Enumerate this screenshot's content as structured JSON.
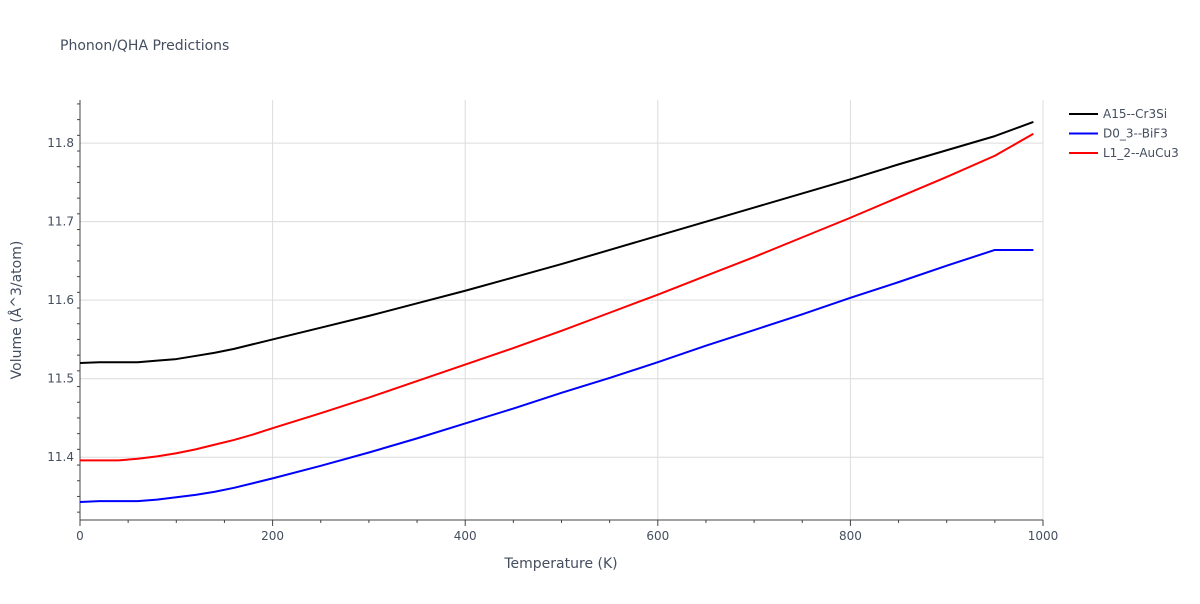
{
  "chart_data": {
    "type": "line",
    "title": "Phonon/QHA Predictions",
    "xlabel": "Temperature (K)",
    "ylabel": "Volume (Å^3/atom)",
    "xlim": [
      0,
      1000
    ],
    "ylim": [
      11.32,
      11.855
    ],
    "xticks": [
      0,
      200,
      400,
      600,
      800,
      1000
    ],
    "yticks": [
      11.4,
      11.5,
      11.6,
      11.7,
      11.8
    ],
    "grid": true,
    "legend_position": "top-right",
    "series": [
      {
        "name": "A15--Cr3Si",
        "color": "#000000",
        "x": [
          0,
          20,
          40,
          60,
          80,
          100,
          120,
          140,
          160,
          180,
          200,
          250,
          300,
          350,
          400,
          450,
          500,
          550,
          600,
          650,
          700,
          750,
          800,
          850,
          900,
          950,
          990
        ],
        "y": [
          11.52,
          11.521,
          11.521,
          11.521,
          11.523,
          11.525,
          11.529,
          11.533,
          11.538,
          11.544,
          11.55,
          11.565,
          11.58,
          11.596,
          11.612,
          11.629,
          11.646,
          11.664,
          11.682,
          11.7,
          11.718,
          11.736,
          11.754,
          11.773,
          11.791,
          11.809,
          11.827
        ]
      },
      {
        "name": "D0_3--BiF3",
        "color": "#0000ff",
        "x": [
          0,
          20,
          40,
          60,
          80,
          100,
          120,
          140,
          160,
          180,
          200,
          250,
          300,
          350,
          400,
          450,
          500,
          550,
          600,
          650,
          700,
          750,
          800,
          850,
          900,
          950,
          990
        ],
        "y": [
          11.343,
          11.344,
          11.344,
          11.344,
          11.346,
          11.349,
          11.352,
          11.356,
          11.361,
          11.367,
          11.373,
          11.389,
          11.406,
          11.424,
          11.443,
          11.462,
          11.482,
          11.501,
          11.521,
          11.542,
          11.562,
          11.582,
          11.603,
          11.623,
          11.644,
          11.664,
          11.664
        ]
      },
      {
        "name": "L1_2--AuCu3",
        "color": "#ff0000",
        "x": [
          0,
          20,
          40,
          60,
          80,
          100,
          120,
          140,
          160,
          180,
          200,
          250,
          300,
          350,
          400,
          450,
          500,
          550,
          600,
          650,
          700,
          750,
          800,
          850,
          900,
          950,
          990
        ],
        "y": [
          11.396,
          11.396,
          11.396,
          11.398,
          11.401,
          11.405,
          11.41,
          11.416,
          11.422,
          11.429,
          11.437,
          11.456,
          11.476,
          11.497,
          11.518,
          11.539,
          11.561,
          11.584,
          11.607,
          11.631,
          11.655,
          11.68,
          11.705,
          11.731,
          11.757,
          11.784,
          11.812
        ]
      }
    ]
  }
}
